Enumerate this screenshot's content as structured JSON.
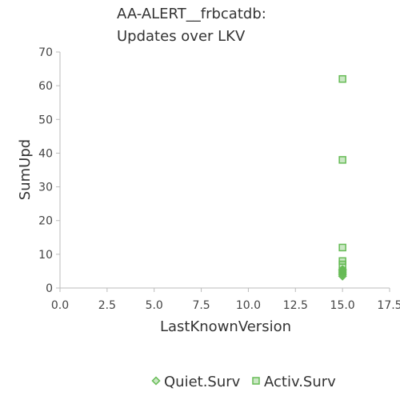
{
  "chart_data": {
    "type": "scatter",
    "title": [
      "AA-ALERT__frbcatdb:",
      "Updates over LKV"
    ],
    "xlabel": "LastKnownVersion",
    "ylabel": "SumUpd",
    "xlim": [
      0,
      17.5
    ],
    "ylim": [
      0,
      70
    ],
    "xticks": [
      "0.0",
      "2.5",
      "5.0",
      "7.5",
      "10.0",
      "12.5",
      "15.0",
      "17.5"
    ],
    "xtick_values": [
      0,
      2.5,
      5,
      7.5,
      10,
      12.5,
      15,
      17.5
    ],
    "yticks": [
      "0",
      "10",
      "20",
      "30",
      "40",
      "50",
      "60",
      "70"
    ],
    "ytick_values": [
      0,
      10,
      20,
      30,
      40,
      50,
      60,
      70
    ],
    "grid": false,
    "legend_position": "bottom",
    "series": [
      {
        "name": "Quiet.Surv",
        "marker": "diamond",
        "color": "#66bb55",
        "points": [
          [
            15,
            4
          ],
          [
            15,
            4.5
          ],
          [
            15,
            5
          ],
          [
            15,
            5.5
          ],
          [
            15,
            3.5
          ]
        ]
      },
      {
        "name": "Activ.Surv",
        "marker": "square",
        "color": "#66bb55",
        "points": [
          [
            15,
            62
          ],
          [
            15,
            38
          ],
          [
            15,
            12
          ],
          [
            15,
            8
          ],
          [
            15,
            7
          ],
          [
            15,
            5
          ]
        ]
      }
    ]
  }
}
